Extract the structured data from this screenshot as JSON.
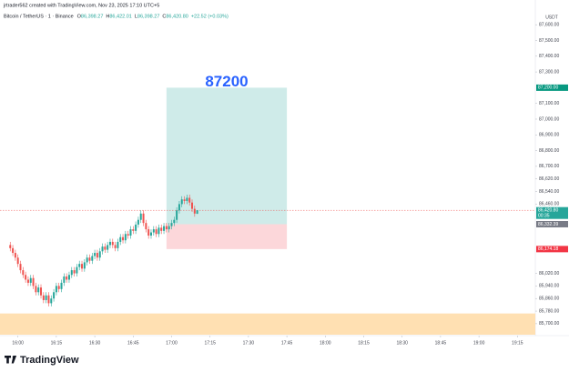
{
  "header": {
    "credit": "jrtrader562 created with TradingView.com, Nov 23, 2025 17:10 UTC+5"
  },
  "chart_data": {
    "type": "candlestick",
    "symbol": "Bitcoin / TetherUS · 1 · Binance",
    "ohlc_legend": [
      {
        "label": "O",
        "value": "86,398.27"
      },
      {
        "label": "H",
        "value": "86,422.01"
      },
      {
        "label": "L",
        "value": "86,398.27"
      },
      {
        "label": "C",
        "value": "86,420.80"
      }
    ],
    "change": "+22.52 (+0.03%)",
    "currency": "USDT",
    "up_color": "#26a69a",
    "down_color": "#ef5350",
    "x": [
      "15:57",
      "15:58",
      "15:59",
      "16:00",
      "16:01",
      "16:02",
      "16:03",
      "16:04",
      "16:05",
      "16:06",
      "16:07",
      "16:08",
      "16:09",
      "16:10",
      "16:11",
      "16:12",
      "16:13",
      "16:14",
      "16:15",
      "16:16",
      "16:17",
      "16:18",
      "16:19",
      "16:20",
      "16:21",
      "16:22",
      "16:23",
      "16:24",
      "16:25",
      "16:26",
      "16:27",
      "16:28",
      "16:29",
      "16:30",
      "16:31",
      "16:32",
      "16:33",
      "16:34",
      "16:35",
      "16:36",
      "16:37",
      "16:38",
      "16:39",
      "16:40",
      "16:41",
      "16:42",
      "16:43",
      "16:44",
      "16:45",
      "16:46",
      "16:47",
      "16:48",
      "16:49",
      "16:50",
      "16:51",
      "16:52",
      "16:53",
      "16:54",
      "16:55",
      "16:56",
      "16:57",
      "16:58",
      "16:59",
      "17:00",
      "17:01",
      "17:02",
      "17:03",
      "17:04",
      "17:05",
      "17:06",
      "17:07",
      "17:08",
      "17:09",
      "17:10"
    ],
    "open": [
      86200,
      86180,
      86150,
      86120,
      86080,
      86040,
      86010,
      85980,
      85960,
      85990,
      85940,
      85900,
      85930,
      85880,
      85850,
      85880,
      85830,
      85860,
      85900,
      85940,
      85920,
      85960,
      86000,
      85980,
      86010,
      86040,
      86020,
      86060,
      86080,
      86050,
      86090,
      86120,
      86100,
      86130,
      86150,
      86120,
      86160,
      86190,
      86170,
      86200,
      86220,
      86200,
      86180,
      86220,
      86250,
      86230,
      86270,
      86260,
      86300,
      86290,
      86330,
      86360,
      86400,
      86340,
      86300,
      86260,
      86280,
      86300,
      86270,
      86310,
      86290,
      86320,
      86300,
      86320,
      86340,
      86360,
      86420,
      86460,
      86490,
      86480,
      86500,
      86470,
      86430,
      86398.27
    ],
    "high": [
      86220,
      86200,
      86170,
      86140,
      86100,
      86060,
      86030,
      86000,
      86010,
      86010,
      85960,
      85950,
      85950,
      85900,
      85900,
      85900,
      85880,
      85920,
      85960,
      85960,
      85980,
      86020,
      86020,
      86030,
      86060,
      86060,
      86080,
      86100,
      86100,
      86110,
      86140,
      86140,
      86150,
      86170,
      86170,
      86180,
      86210,
      86210,
      86220,
      86240,
      86240,
      86220,
      86240,
      86270,
      86270,
      86290,
      86290,
      86320,
      86320,
      86350,
      86380,
      86420,
      86420,
      86360,
      86320,
      86300,
      86320,
      86320,
      86330,
      86330,
      86340,
      86340,
      86340,
      86360,
      86380,
      86440,
      86480,
      86510,
      86510,
      86520,
      86520,
      86490,
      86450,
      86422.01
    ],
    "low": [
      86160,
      86130,
      86100,
      86060,
      86020,
      85990,
      85960,
      85940,
      85940,
      85920,
      85880,
      85880,
      85860,
      85830,
      85830,
      85810,
      85810,
      85840,
      85880,
      85900,
      85900,
      85940,
      85960,
      85960,
      85990,
      86000,
      86000,
      86040,
      86030,
      86030,
      86070,
      86080,
      86080,
      86110,
      86100,
      86100,
      86140,
      86150,
      86150,
      86180,
      86180,
      86160,
      86160,
      86200,
      86210,
      86210,
      86240,
      86240,
      86270,
      86270,
      86310,
      86340,
      86320,
      86280,
      86240,
      86240,
      86260,
      86250,
      86250,
      86270,
      86270,
      86280,
      86280,
      86300,
      86320,
      86340,
      86400,
      86440,
      86460,
      86460,
      86450,
      86410,
      86380,
      86398.27
    ],
    "close": [
      86180,
      86150,
      86120,
      86080,
      86040,
      86010,
      85980,
      85960,
      85990,
      85940,
      85900,
      85930,
      85880,
      85850,
      85880,
      85830,
      85860,
      85900,
      85940,
      85920,
      85960,
      86000,
      85980,
      86010,
      86040,
      86020,
      86060,
      86080,
      86050,
      86090,
      86120,
      86100,
      86130,
      86150,
      86120,
      86160,
      86190,
      86170,
      86200,
      86220,
      86200,
      86180,
      86220,
      86250,
      86230,
      86270,
      86260,
      86300,
      86290,
      86330,
      86360,
      86400,
      86340,
      86300,
      86260,
      86280,
      86300,
      86270,
      86310,
      86290,
      86320,
      86300,
      86320,
      86340,
      86360,
      86420,
      86460,
      86490,
      86480,
      86500,
      86470,
      86430,
      86400,
      86420.8
    ],
    "xlim": [
      "15:53",
      "19:22"
    ],
    "xticks": [
      "16:00",
      "16:15",
      "16:30",
      "16:45",
      "17:00",
      "17:15",
      "17:30",
      "17:45",
      "18:00",
      "18:15",
      "18:30",
      "18:45",
      "19:00",
      "19:15"
    ],
    "ylim": [
      85630,
      87630
    ],
    "yticks": [
      {
        "value": 87600,
        "label": "87,600.00"
      },
      {
        "value": 87500,
        "label": "87,500.00"
      },
      {
        "value": 87400,
        "label": "87,400.00"
      },
      {
        "value": 87300,
        "label": "87,300.00"
      },
      {
        "value": 87100,
        "label": "87,100.00"
      },
      {
        "value": 87000,
        "label": "87,000.00"
      },
      {
        "value": 86900,
        "label": "86,900.00"
      },
      {
        "value": 86800,
        "label": "86,800.00"
      },
      {
        "value": 86700,
        "label": "86,700.00"
      },
      {
        "value": 86620,
        "label": "86,620.00"
      },
      {
        "value": 86540,
        "label": "86,540.00"
      },
      {
        "value": 86460,
        "label": "86,460.00"
      },
      {
        "value": 86020,
        "label": "86,020.00"
      },
      {
        "value": 85940,
        "label": "85,940.00"
      },
      {
        "value": 85860,
        "label": "85,860.00"
      },
      {
        "value": 85780,
        "label": "85,780.00"
      },
      {
        "value": 85700,
        "label": "85,700.00"
      }
    ],
    "position": {
      "start": "16:58",
      "end": "17:45",
      "entry": 86332.39,
      "target": 87200,
      "stop": 86174.18,
      "target_text": "87200",
      "entry_label": "86,332.39",
      "target_label": "87,200.00",
      "stop_label": "86,174.18"
    },
    "last_price": 86420.8,
    "last_price_label": "86,420.80",
    "countdown": "00:35",
    "zone": {
      "low": 85630,
      "high": 85765,
      "color": "#ffe0b2"
    }
  },
  "footer": {
    "brand": "TradingView"
  }
}
